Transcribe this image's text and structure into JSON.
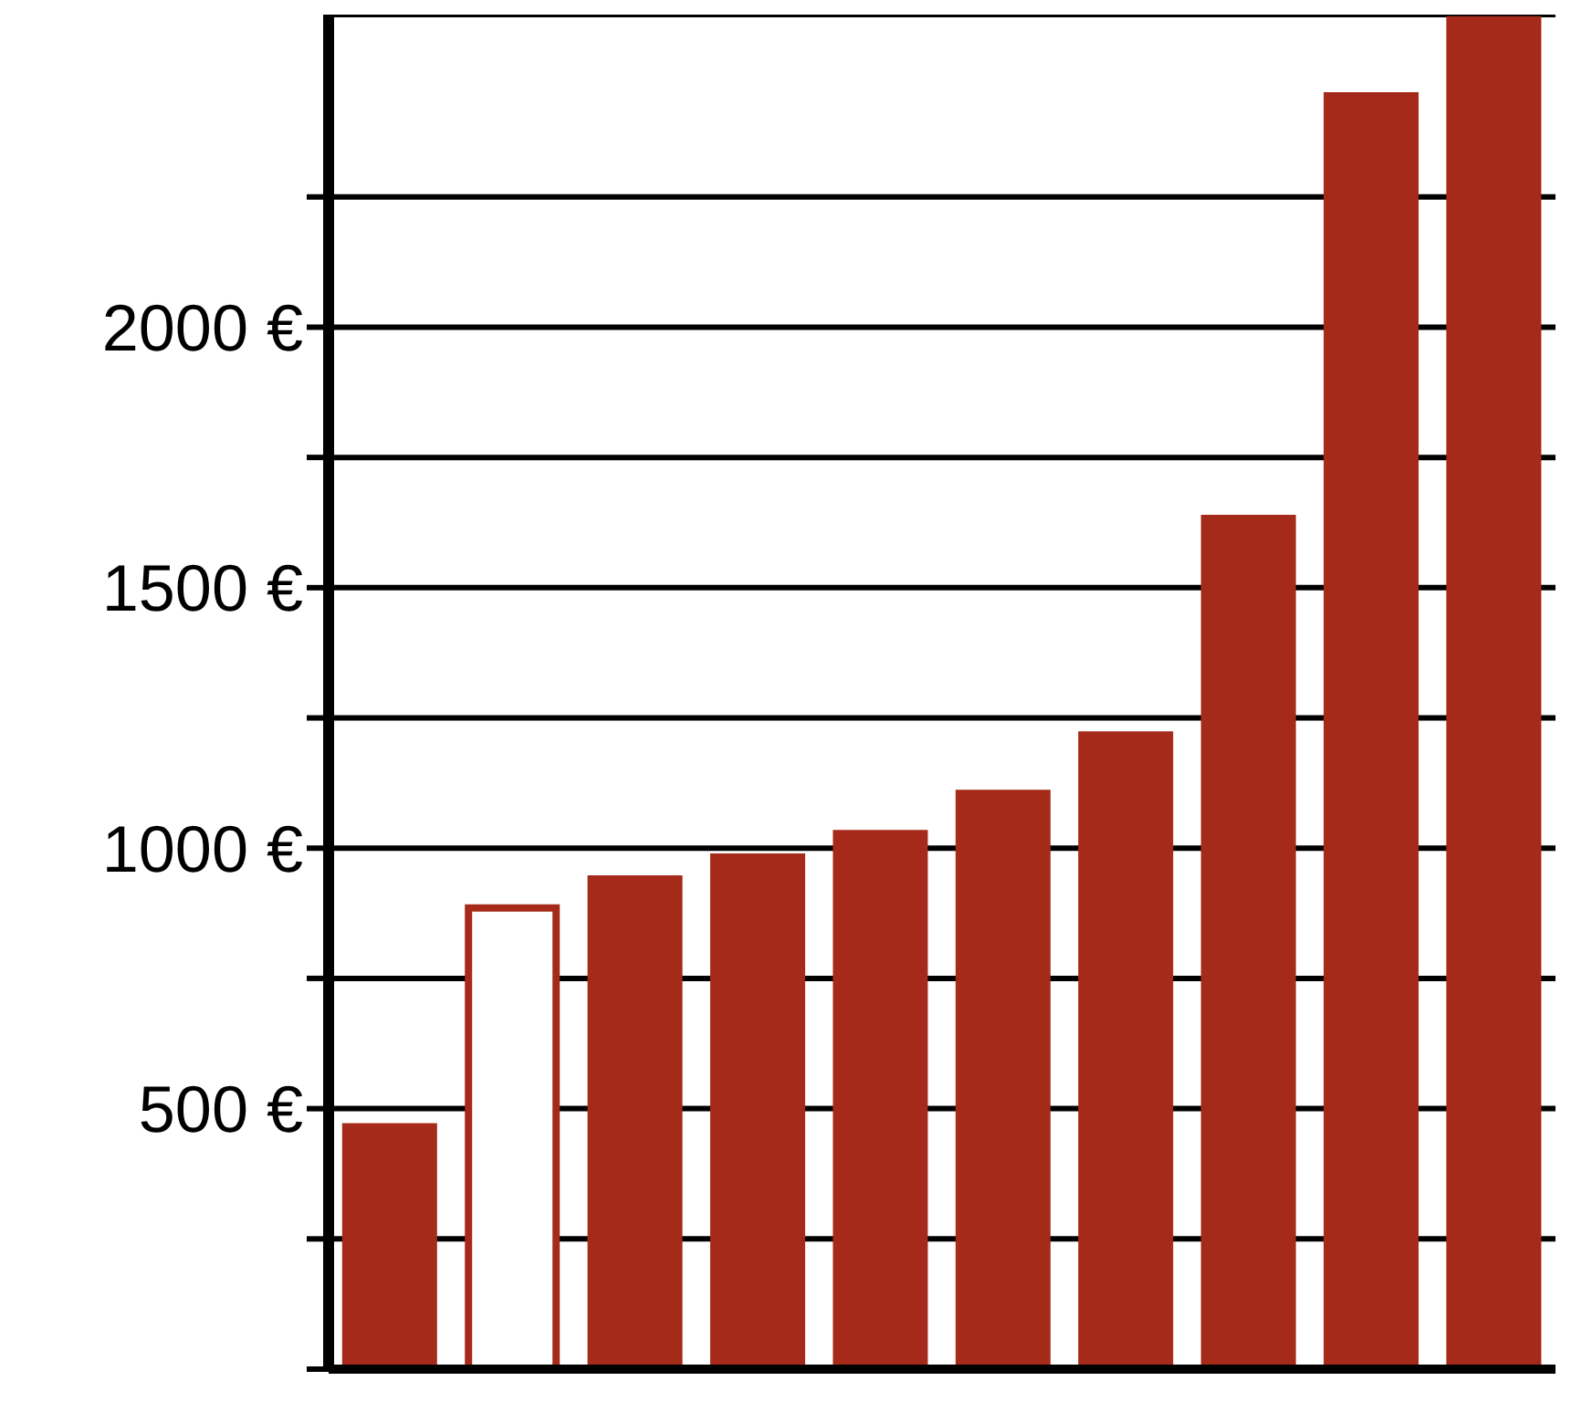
{
  "chart_data": {
    "type": "bar",
    "categories": [
      null,
      null,
      null,
      null,
      null,
      null,
      null,
      null,
      null,
      null
    ],
    "values": [
      465,
      885,
      941,
      983,
      1028,
      1105,
      1217,
      1633,
      2444,
      2590
    ],
    "color": "#a52a1a",
    "colors": [
      "#a52a1a",
      "#ffffff",
      "#a52a1a",
      "#a52a1a",
      "#a52a1a",
      "#a52a1a",
      "#a52a1a",
      "#a52a1a",
      "#a52a1a",
      "#a52a1a"
    ],
    "ylim": [
      0,
      2600
    ],
    "yticks": [
      {
        "value": 0,
        "label": null
      },
      {
        "value": 250,
        "label": null
      },
      {
        "value": 500,
        "label": "500 €"
      },
      {
        "value": 750,
        "label": null
      },
      {
        "value": 1000,
        "label": "1000 €"
      },
      {
        "value": 1250,
        "label": null
      },
      {
        "value": 1500,
        "label": "1500 €"
      },
      {
        "value": 1750,
        "label": null
      },
      {
        "value": 2000,
        "label": "2000 €"
      },
      {
        "value": 2250,
        "label": null
      }
    ],
    "grid": "y",
    "tick_labels": "y"
  }
}
